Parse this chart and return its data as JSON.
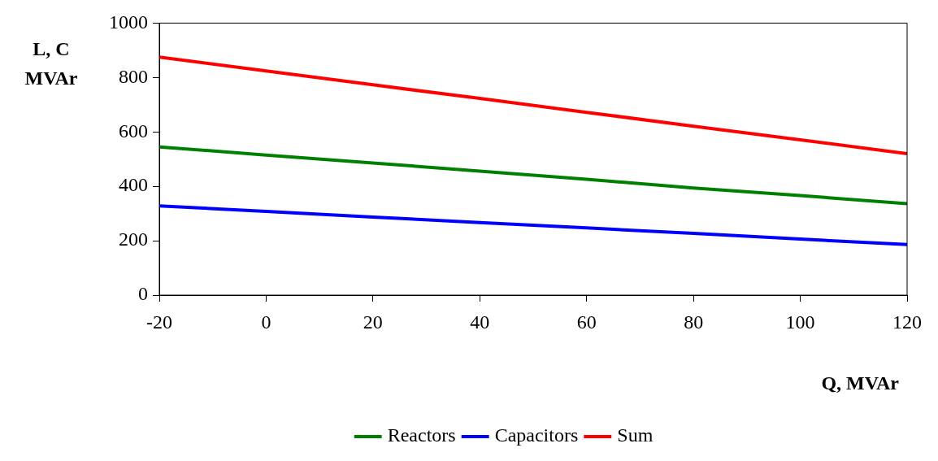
{
  "chart_data": {
    "type": "line",
    "xlabel": "Q, MVAr",
    "ylabel": "L, C\nMVAr",
    "x": [
      -20,
      0,
      20,
      40,
      60,
      80,
      100,
      120
    ],
    "series": [
      {
        "name": "Reactors",
        "color": "#008000",
        "values": [
          545,
          515,
          486,
          456,
          426,
          394,
          366,
          336
        ]
      },
      {
        "name": "Capacitors",
        "color": "#0000ff",
        "values": [
          328,
          308,
          287,
          267,
          247,
          227,
          206,
          186
        ]
      },
      {
        "name": "Sum",
        "color": "#ff0000",
        "values": [
          875,
          824,
          773,
          723,
          672,
          621,
          571,
          520
        ]
      }
    ],
    "xlim": [
      -20,
      120
    ],
    "xticks": [
      -20,
      0,
      20,
      40,
      60,
      80,
      100,
      120
    ],
    "ylim": [
      0,
      1000
    ],
    "yticks": [
      0,
      200,
      400,
      600,
      800,
      1000
    ],
    "grid": false,
    "legend": "bottom",
    "marker": "none",
    "line_style": "solid"
  }
}
